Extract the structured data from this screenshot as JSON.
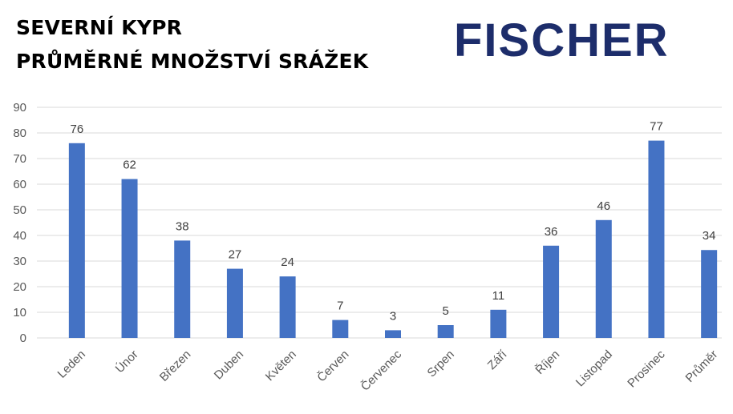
{
  "header": {
    "title_line1": "SEVERNÍ KYPR",
    "title_line2": "PRŮMĚRNÉ MNOŽSTVÍ SRÁŽEK"
  },
  "logo": {
    "text": "FISCHER",
    "color": "#1d2d6b"
  },
  "chart_data": {
    "type": "bar",
    "title": "PRŮMĚRNÉ MNOŽSTVÍ SRÁŽEK",
    "categories": [
      "Leden",
      "Únor",
      "Březen",
      "Duben",
      "Květen",
      "Červen",
      "Červenec",
      "Srpen",
      "Září",
      "Říjen",
      "Listopad",
      "Prosinec",
      "Průměr"
    ],
    "values": [
      76,
      62,
      38,
      27,
      24,
      7,
      3,
      5,
      11,
      36,
      46,
      77,
      34.3
    ],
    "data_labels": [
      "76",
      "62",
      "38",
      "27",
      "24",
      "7",
      "3",
      "5",
      "11",
      "36",
      "46",
      "77",
      "34"
    ],
    "ylim": [
      0,
      90
    ],
    "yticks": [
      0,
      10,
      20,
      30,
      40,
      50,
      60,
      70,
      80,
      90
    ],
    "grid": true,
    "legend": "none",
    "bar_color": "#4472c4",
    "grid_color": "#d9d9d9"
  }
}
